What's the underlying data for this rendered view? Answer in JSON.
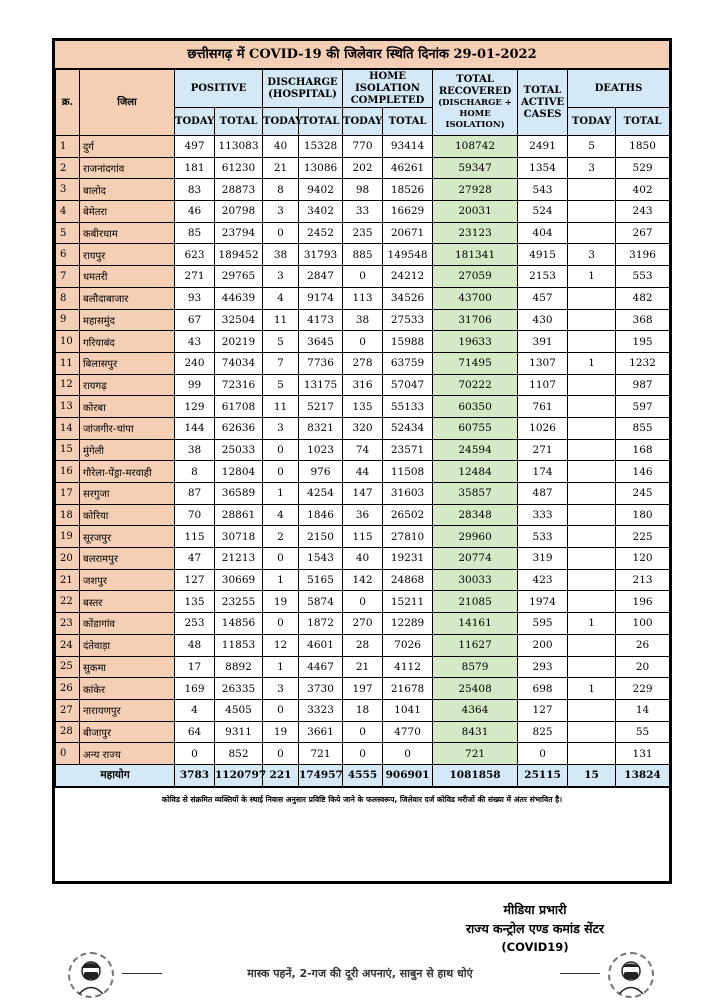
{
  "report": {
    "title": "छत्तीसगढ़ में COVID-19 की जिलेवार स्थिति दिनांक 29-01-2022",
    "headers": {
      "sno": "क्र.",
      "district": "जिला",
      "positive": "POSITIVE",
      "discharge": "DISCHARGE (HOSPITAL)",
      "home_isolation": "HOME ISOLATION COMPLETED",
      "total_recovered": "TOTAL RECOVERED",
      "total_recovered_sub": "(DISCHARGE + HOME ISOLATION)",
      "active": "TOTAL ACTIVE CASES",
      "deaths": "DEATHS",
      "today": "TODAY",
      "total": "TOTAL"
    },
    "rows": [
      {
        "sno": "1",
        "district": "दुर्ग",
        "pos_today": "497",
        "pos_total": "113083",
        "dis_today": "40",
        "dis_total": "15328",
        "hi_today": "770",
        "hi_total": "93414",
        "recovered": "108742",
        "active": "2491",
        "death_today": "5",
        "death_total": "1850"
      },
      {
        "sno": "2",
        "district": "राजनांदगांव",
        "pos_today": "181",
        "pos_total": "61230",
        "dis_today": "21",
        "dis_total": "13086",
        "hi_today": "202",
        "hi_total": "46261",
        "recovered": "59347",
        "active": "1354",
        "death_today": "3",
        "death_total": "529"
      },
      {
        "sno": "3",
        "district": "बालोद",
        "pos_today": "83",
        "pos_total": "28873",
        "dis_today": "8",
        "dis_total": "9402",
        "hi_today": "98",
        "hi_total": "18526",
        "recovered": "27928",
        "active": "543",
        "death_today": "",
        "death_total": "402"
      },
      {
        "sno": "4",
        "district": "बेमेतरा",
        "pos_today": "46",
        "pos_total": "20798",
        "dis_today": "3",
        "dis_total": "3402",
        "hi_today": "33",
        "hi_total": "16629",
        "recovered": "20031",
        "active": "524",
        "death_today": "",
        "death_total": "243"
      },
      {
        "sno": "5",
        "district": "कबीरधाम",
        "pos_today": "85",
        "pos_total": "23794",
        "dis_today": "0",
        "dis_total": "2452",
        "hi_today": "235",
        "hi_total": "20671",
        "recovered": "23123",
        "active": "404",
        "death_today": "",
        "death_total": "267"
      },
      {
        "sno": "6",
        "district": "रायपुर",
        "pos_today": "623",
        "pos_total": "189452",
        "dis_today": "38",
        "dis_total": "31793",
        "hi_today": "885",
        "hi_total": "149548",
        "recovered": "181341",
        "active": "4915",
        "death_today": "3",
        "death_total": "3196"
      },
      {
        "sno": "7",
        "district": "धमतरी",
        "pos_today": "271",
        "pos_total": "29765",
        "dis_today": "3",
        "dis_total": "2847",
        "hi_today": "0",
        "hi_total": "24212",
        "recovered": "27059",
        "active": "2153",
        "death_today": "1",
        "death_total": "553"
      },
      {
        "sno": "8",
        "district": "बलौदाबाजार",
        "pos_today": "93",
        "pos_total": "44639",
        "dis_today": "4",
        "dis_total": "9174",
        "hi_today": "113",
        "hi_total": "34526",
        "recovered": "43700",
        "active": "457",
        "death_today": "",
        "death_total": "482"
      },
      {
        "sno": "9",
        "district": "महासमुंद",
        "pos_today": "67",
        "pos_total": "32504",
        "dis_today": "11",
        "dis_total": "4173",
        "hi_today": "38",
        "hi_total": "27533",
        "recovered": "31706",
        "active": "430",
        "death_today": "",
        "death_total": "368"
      },
      {
        "sno": "10",
        "district": "गरियाबंद",
        "pos_today": "43",
        "pos_total": "20219",
        "dis_today": "5",
        "dis_total": "3645",
        "hi_today": "0",
        "hi_total": "15988",
        "recovered": "19633",
        "active": "391",
        "death_today": "",
        "death_total": "195"
      },
      {
        "sno": "11",
        "district": "बिलासपुर",
        "pos_today": "240",
        "pos_total": "74034",
        "dis_today": "7",
        "dis_total": "7736",
        "hi_today": "278",
        "hi_total": "63759",
        "recovered": "71495",
        "active": "1307",
        "death_today": "1",
        "death_total": "1232"
      },
      {
        "sno": "12",
        "district": "रायगढ़",
        "pos_today": "99",
        "pos_total": "72316",
        "dis_today": "5",
        "dis_total": "13175",
        "hi_today": "316",
        "hi_total": "57047",
        "recovered": "70222",
        "active": "1107",
        "death_today": "",
        "death_total": "987"
      },
      {
        "sno": "13",
        "district": "कोरबा",
        "pos_today": "129",
        "pos_total": "61708",
        "dis_today": "11",
        "dis_total": "5217",
        "hi_today": "135",
        "hi_total": "55133",
        "recovered": "60350",
        "active": "761",
        "death_today": "",
        "death_total": "597"
      },
      {
        "sno": "14",
        "district": "जांजगीर-चांपा",
        "pos_today": "144",
        "pos_total": "62636",
        "dis_today": "3",
        "dis_total": "8321",
        "hi_today": "320",
        "hi_total": "52434",
        "recovered": "60755",
        "active": "1026",
        "death_today": "",
        "death_total": "855"
      },
      {
        "sno": "15",
        "district": "मुंगेली",
        "pos_today": "38",
        "pos_total": "25033",
        "dis_today": "0",
        "dis_total": "1023",
        "hi_today": "74",
        "hi_total": "23571",
        "recovered": "24594",
        "active": "271",
        "death_today": "",
        "death_total": "168"
      },
      {
        "sno": "16",
        "district": "गौरेला-पेंड्रा-मरवाही",
        "pos_today": "8",
        "pos_total": "12804",
        "dis_today": "0",
        "dis_total": "976",
        "hi_today": "44",
        "hi_total": "11508",
        "recovered": "12484",
        "active": "174",
        "death_today": "",
        "death_total": "146"
      },
      {
        "sno": "17",
        "district": "सरगुजा",
        "pos_today": "87",
        "pos_total": "36589",
        "dis_today": "1",
        "dis_total": "4254",
        "hi_today": "147",
        "hi_total": "31603",
        "recovered": "35857",
        "active": "487",
        "death_today": "",
        "death_total": "245"
      },
      {
        "sno": "18",
        "district": "कोरिया",
        "pos_today": "70",
        "pos_total": "28861",
        "dis_today": "4",
        "dis_total": "1846",
        "hi_today": "36",
        "hi_total": "26502",
        "recovered": "28348",
        "active": "333",
        "death_today": "",
        "death_total": "180"
      },
      {
        "sno": "19",
        "district": "सूरजपुर",
        "pos_today": "115",
        "pos_total": "30718",
        "dis_today": "2",
        "dis_total": "2150",
        "hi_today": "115",
        "hi_total": "27810",
        "recovered": "29960",
        "active": "533",
        "death_today": "",
        "death_total": "225"
      },
      {
        "sno": "20",
        "district": "बलरामपुर",
        "pos_today": "47",
        "pos_total": "21213",
        "dis_today": "0",
        "dis_total": "1543",
        "hi_today": "40",
        "hi_total": "19231",
        "recovered": "20774",
        "active": "319",
        "death_today": "",
        "death_total": "120"
      },
      {
        "sno": "21",
        "district": "जशपुर",
        "pos_today": "127",
        "pos_total": "30669",
        "dis_today": "1",
        "dis_total": "5165",
        "hi_today": "142",
        "hi_total": "24868",
        "recovered": "30033",
        "active": "423",
        "death_today": "",
        "death_total": "213"
      },
      {
        "sno": "22",
        "district": "बस्तर",
        "pos_today": "135",
        "pos_total": "23255",
        "dis_today": "19",
        "dis_total": "5874",
        "hi_today": "0",
        "hi_total": "15211",
        "recovered": "21085",
        "active": "1974",
        "death_today": "",
        "death_total": "196"
      },
      {
        "sno": "23",
        "district": "कोंडागांव",
        "pos_today": "253",
        "pos_total": "14856",
        "dis_today": "0",
        "dis_total": "1872",
        "hi_today": "270",
        "hi_total": "12289",
        "recovered": "14161",
        "active": "595",
        "death_today": "1",
        "death_total": "100"
      },
      {
        "sno": "24",
        "district": "दंतेवाड़ा",
        "pos_today": "48",
        "pos_total": "11853",
        "dis_today": "12",
        "dis_total": "4601",
        "hi_today": "28",
        "hi_total": "7026",
        "recovered": "11627",
        "active": "200",
        "death_today": "",
        "death_total": "26"
      },
      {
        "sno": "25",
        "district": "सुकमा",
        "pos_today": "17",
        "pos_total": "8892",
        "dis_today": "1",
        "dis_total": "4467",
        "hi_today": "21",
        "hi_total": "4112",
        "recovered": "8579",
        "active": "293",
        "death_today": "",
        "death_total": "20"
      },
      {
        "sno": "26",
        "district": "कांकेर",
        "pos_today": "169",
        "pos_total": "26335",
        "dis_today": "3",
        "dis_total": "3730",
        "hi_today": "197",
        "hi_total": "21678",
        "recovered": "25408",
        "active": "698",
        "death_today": "1",
        "death_total": "229"
      },
      {
        "sno": "27",
        "district": "नारायणपुर",
        "pos_today": "4",
        "pos_total": "4505",
        "dis_today": "0",
        "dis_total": "3323",
        "hi_today": "18",
        "hi_total": "1041",
        "recovered": "4364",
        "active": "127",
        "death_today": "",
        "death_total": "14"
      },
      {
        "sno": "28",
        "district": "बीजापुर",
        "pos_today": "64",
        "pos_total": "9311",
        "dis_today": "19",
        "dis_total": "3661",
        "hi_today": "0",
        "hi_total": "4770",
        "recovered": "8431",
        "active": "825",
        "death_today": "",
        "death_total": "55"
      },
      {
        "sno": "0",
        "district": "अन्य राज्य",
        "pos_today": "0",
        "pos_total": "852",
        "dis_today": "0",
        "dis_total": "721",
        "hi_today": "0",
        "hi_total": "0",
        "recovered": "721",
        "active": "0",
        "death_today": "",
        "death_total": "131"
      }
    ],
    "total_row": {
      "label": "महायोग",
      "pos_today": "3783",
      "pos_total": "1120797",
      "dis_today": "221",
      "dis_total": "174957",
      "hi_today": "4555",
      "hi_total": "906901",
      "recovered": "1081858",
      "active": "25115",
      "death_today": "15",
      "death_total": "13824"
    },
    "note": "कोविड से संक्रमित व्यक्तियों के स्थाई निवास अनुसार प्रविष्टि किये जाने के फलस्वरूप, जिलेवार दर्ज कोविड मरीजों की संख्या में अंतर संभावित है।"
  },
  "signature": {
    "line1": "मीडिया प्रभारी",
    "line2": "राज्य कन्ट्रोल एण्ड कमांड सेंटर",
    "line3": "(COVID19)"
  },
  "footer": {
    "slogan": "मास्क पहनें, 2-गज की दूरी अपनाएं, साबुन से हाथ धोएं"
  }
}
